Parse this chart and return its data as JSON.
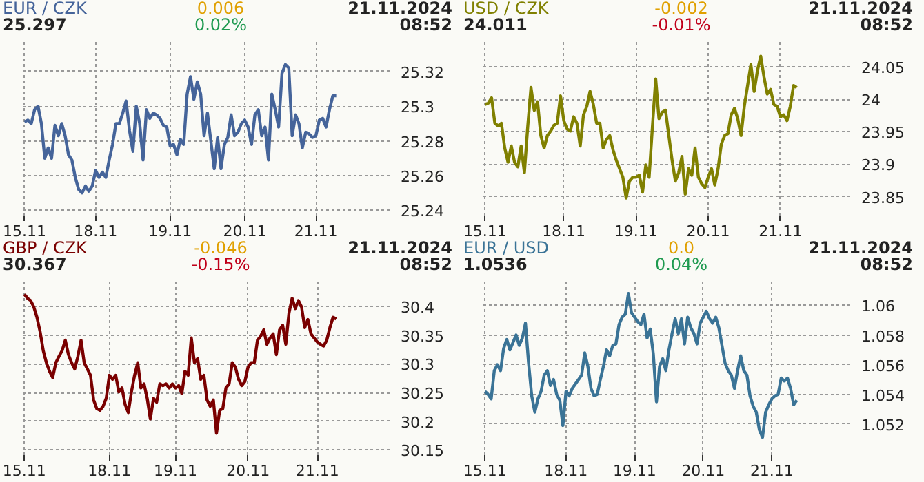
{
  "chart_data": [
    {
      "type": "line",
      "title": "EUR / CZK",
      "subtitle": "25.297",
      "annotations": [
        "0.006",
        "0.02%",
        "21.11.2024",
        "08:52"
      ],
      "grid": true,
      "categories": [
        "15.11",
        null,
        null,
        null,
        null,
        null,
        null,
        null,
        null,
        null,
        null,
        null,
        null,
        null,
        null,
        null,
        null,
        null,
        null,
        null,
        null,
        "18.11",
        null,
        null,
        null,
        null,
        null,
        null,
        null,
        null,
        null,
        null,
        null,
        null,
        null,
        null,
        null,
        null,
        null,
        null,
        null,
        null,
        null,
        "19.11",
        null,
        null,
        null,
        null,
        null,
        null,
        null,
        null,
        null,
        null,
        null,
        null,
        null,
        null,
        null,
        null,
        null,
        null,
        null,
        null,
        null,
        "20.11",
        null,
        null,
        null,
        null,
        null,
        null,
        null,
        null,
        null,
        null,
        null,
        null,
        null,
        null,
        null,
        null,
        null,
        null,
        null,
        null,
        "21.11",
        null,
        null,
        null,
        null,
        null,
        null
      ],
      "ylim": [
        25.237,
        25.337
      ],
      "yticks": [
        25.24,
        25.26,
        25.28,
        25.3,
        25.32
      ],
      "series": [
        {
          "color": "#45649a",
          "values": [
            25.291,
            25.292,
            25.29,
            25.298,
            25.3,
            25.29,
            25.27,
            25.276,
            25.27,
            25.289,
            25.283,
            25.29,
            25.283,
            25.272,
            25.269,
            25.259,
            25.252,
            25.25,
            25.254,
            25.251,
            25.254,
            25.263,
            25.259,
            25.262,
            25.259,
            25.269,
            25.278,
            25.29,
            25.29,
            25.296,
            25.303,
            25.286,
            25.274,
            25.3,
            25.29,
            25.269,
            25.298,
            25.293,
            25.296,
            25.295,
            25.293,
            25.289,
            25.288,
            25.277,
            25.278,
            25.272,
            25.281,
            25.278,
            25.307,
            25.317,
            25.304,
            25.314,
            25.307,
            25.283,
            25.296,
            25.28,
            25.264,
            25.282,
            25.264,
            25.278,
            25.282,
            25.295,
            25.283,
            25.285,
            25.29,
            25.292,
            25.288,
            25.278,
            25.295,
            25.298,
            25.283,
            25.288,
            25.269,
            25.307,
            25.298,
            25.288,
            25.319,
            25.324,
            25.322,
            25.283,
            25.295,
            25.29,
            25.276,
            25.285,
            25.284,
            25.282,
            25.283,
            25.292,
            25.293,
            25.288,
            25.298,
            25.306,
            25.306
          ]
        }
      ]
    },
    {
      "type": "line",
      "title": "USD / CZK",
      "subtitle": "24.011",
      "annotations": [
        "-0.002",
        "-0.01%",
        "21.11.2024",
        "08:52"
      ],
      "grid": true,
      "categories": [
        "15.11",
        null,
        null,
        null,
        null,
        null,
        null,
        null,
        null,
        null,
        null,
        null,
        null,
        null,
        null,
        null,
        null,
        null,
        null,
        null,
        null,
        null,
        null,
        null,
        "18.11",
        null,
        null,
        null,
        null,
        null,
        null,
        null,
        null,
        null,
        null,
        null,
        null,
        null,
        null,
        null,
        null,
        null,
        null,
        null,
        null,
        null,
        "19.11",
        null,
        null,
        null,
        null,
        null,
        null,
        null,
        null,
        null,
        null,
        null,
        null,
        null,
        null,
        null,
        null,
        null,
        null,
        null,
        null,
        null,
        "20.11",
        null,
        null,
        null,
        null,
        null,
        null,
        null,
        null,
        null,
        null,
        null,
        null,
        null,
        null,
        null,
        null,
        null,
        null,
        null,
        null,
        null,
        "21.11",
        null,
        null,
        null,
        null,
        null
      ],
      "ylim": [
        23.821,
        24.088
      ],
      "yticks": [
        23.85,
        23.9,
        23.95,
        24,
        24.05
      ],
      "series": [
        {
          "color": "#808000",
          "values": [
            23.992,
            23.994,
            24.002,
            23.963,
            23.959,
            23.963,
            23.925,
            23.903,
            23.928,
            23.903,
            23.896,
            23.928,
            23.887,
            23.957,
            24.018,
            23.983,
            23.996,
            23.944,
            23.925,
            23.944,
            23.951,
            23.96,
            23.963,
            24.005,
            23.967,
            23.954,
            23.951,
            23.973,
            23.963,
            23.928,
            23.976,
            23.989,
            24.012,
            23.992,
            23.963,
            23.963,
            23.925,
            23.938,
            23.944,
            23.922,
            23.906,
            23.893,
            23.88,
            23.848,
            23.874,
            23.88,
            23.88,
            23.883,
            23.857,
            23.899,
            23.88,
            23.957,
            24.031,
            23.97,
            23.98,
            23.983,
            23.944,
            23.906,
            23.874,
            23.887,
            23.912,
            23.854,
            23.893,
            23.883,
            23.925,
            23.88,
            23.87,
            23.864,
            23.88,
            23.893,
            23.868,
            23.893,
            23.931,
            23.944,
            23.947,
            23.976,
            23.986,
            23.97,
            23.944,
            23.989,
            24.021,
            24.053,
            24.012,
            24.044,
            24.066,
            24.034,
            24.008,
            24.015,
            23.992,
            23.989,
            23.973,
            23.976,
            23.967,
            23.989,
            24.021,
            24.018
          ]
        }
      ]
    },
    {
      "type": "line",
      "title": "GBP / CZK",
      "subtitle": "30.367",
      "annotations": [
        "-0.046",
        "-0.15%",
        "21.11.2024",
        "08:52"
      ],
      "grid": true,
      "categories": [
        "15.11",
        null,
        null,
        null,
        null,
        null,
        null,
        null,
        null,
        null,
        null,
        null,
        null,
        null,
        null,
        null,
        null,
        null,
        null,
        null,
        null,
        null,
        null,
        null,
        null,
        null,
        null,
        "18.11",
        null,
        null,
        null,
        null,
        null,
        null,
        null,
        null,
        null,
        null,
        null,
        null,
        null,
        null,
        null,
        null,
        null,
        null,
        null,
        null,
        "19.11",
        null,
        null,
        null,
        null,
        null,
        null,
        null,
        null,
        null,
        null,
        null,
        null,
        null,
        null,
        null,
        null,
        null,
        null,
        null,
        null,
        null,
        null,
        "20.11",
        null,
        null,
        null,
        null,
        null,
        null,
        null,
        null,
        null,
        null,
        null,
        null,
        null,
        null,
        null,
        null,
        null,
        null,
        null,
        null,
        null,
        "21.11",
        null,
        null,
        null,
        null,
        null,
        null
      ],
      "ylim": [
        30.141,
        30.443
      ],
      "yticks": [
        30.15,
        30.2,
        30.25,
        30.3,
        30.35,
        30.4
      ],
      "series": [
        {
          "color": "#7a0000",
          "values": [
            30.421,
            30.414,
            30.41,
            30.399,
            30.381,
            30.356,
            30.323,
            30.302,
            30.287,
            30.276,
            30.302,
            30.313,
            30.323,
            30.341,
            30.316,
            30.302,
            30.291,
            30.313,
            30.341,
            30.302,
            30.291,
            30.28,
            30.237,
            30.222,
            30.219,
            30.226,
            30.24,
            30.28,
            30.273,
            30.28,
            30.251,
            30.258,
            30.229,
            30.215,
            30.251,
            30.28,
            30.302,
            30.258,
            30.265,
            30.24,
            30.204,
            30.24,
            30.233,
            30.265,
            30.262,
            30.265,
            30.258,
            30.265,
            30.258,
            30.262,
            30.248,
            30.287,
            30.28,
            30.345,
            30.302,
            30.309,
            30.273,
            30.28,
            30.237,
            30.226,
            30.237,
            30.179,
            30.219,
            30.222,
            30.258,
            30.265,
            30.302,
            30.294,
            30.273,
            30.262,
            30.269,
            30.294,
            30.302,
            30.302,
            30.341,
            30.348,
            30.359,
            30.334,
            30.345,
            30.352,
            30.316,
            30.359,
            30.367,
            30.334,
            30.388,
            30.414,
            30.396,
            30.41,
            30.399,
            30.363,
            30.377,
            30.352,
            30.345,
            30.338,
            30.334,
            30.331,
            30.341,
            30.363,
            30.381,
            30.378
          ]
        }
      ]
    },
    {
      "type": "line",
      "title": "EUR / USD",
      "subtitle": "1.0536",
      "annotations": [
        "0.0",
        "0.04%",
        "21.11.2024",
        "08:52"
      ],
      "grid": true,
      "categories": [
        "15.11",
        null,
        null,
        null,
        null,
        null,
        null,
        null,
        null,
        null,
        null,
        null,
        null,
        null,
        null,
        null,
        null,
        null,
        null,
        null,
        null,
        null,
        null,
        null,
        null,
        null,
        "18.11",
        null,
        null,
        null,
        null,
        null,
        null,
        null,
        null,
        null,
        null,
        null,
        null,
        null,
        null,
        null,
        null,
        null,
        null,
        null,
        null,
        null,
        "19.11",
        null,
        null,
        null,
        null,
        null,
        null,
        null,
        null,
        null,
        null,
        null,
        null,
        null,
        null,
        null,
        null,
        null,
        null,
        null,
        null,
        null,
        "20.11",
        null,
        null,
        null,
        null,
        null,
        null,
        null,
        null,
        null,
        null,
        null,
        null,
        null,
        null,
        null,
        null,
        null,
        null,
        null,
        null,
        null,
        "21.11",
        null,
        null,
        null,
        null,
        null,
        null,
        null,
        null
      ],
      "ylim": [
        1.0499,
        1.0616
      ],
      "yticks": [
        1.052,
        1.054,
        1.056,
        1.058,
        1.06
      ],
      "series": [
        {
          "color": "#3a7396",
          "values": [
            1.0542,
            1.054,
            1.0537,
            1.0556,
            1.056,
            1.0556,
            1.0571,
            1.0577,
            1.057,
            1.0575,
            1.058,
            1.0573,
            1.0578,
            1.0588,
            1.0561,
            1.0539,
            1.0528,
            1.0537,
            1.0542,
            1.0553,
            1.0556,
            1.0546,
            1.055,
            1.054,
            1.0536,
            1.0519,
            1.0542,
            1.0539,
            1.0544,
            1.0547,
            1.055,
            1.0553,
            1.0568,
            1.0559,
            1.0544,
            1.0539,
            1.054,
            1.055,
            1.0559,
            1.057,
            1.0566,
            1.0573,
            1.0574,
            1.0587,
            1.0592,
            1.0594,
            1.0608,
            1.0595,
            1.0592,
            1.0589,
            1.0587,
            1.0594,
            1.0578,
            1.0584,
            1.0567,
            1.0535,
            1.0559,
            1.0564,
            1.0556,
            1.057,
            1.0581,
            1.0591,
            1.0581,
            1.0591,
            1.0574,
            1.0592,
            1.0585,
            1.0581,
            1.0574,
            1.0588,
            1.0592,
            1.0596,
            1.0591,
            1.0588,
            1.0592,
            1.0585,
            1.0573,
            1.0561,
            1.0556,
            1.0553,
            1.0544,
            1.0556,
            1.0566,
            1.0556,
            1.0553,
            1.0539,
            1.0532,
            1.0528,
            1.0516,
            1.0511,
            1.0528,
            1.0533,
            1.0537,
            1.0539,
            1.054,
            1.0551,
            1.0549,
            1.0551,
            1.0544,
            1.0533,
            1.0536
          ]
        }
      ]
    }
  ]
}
